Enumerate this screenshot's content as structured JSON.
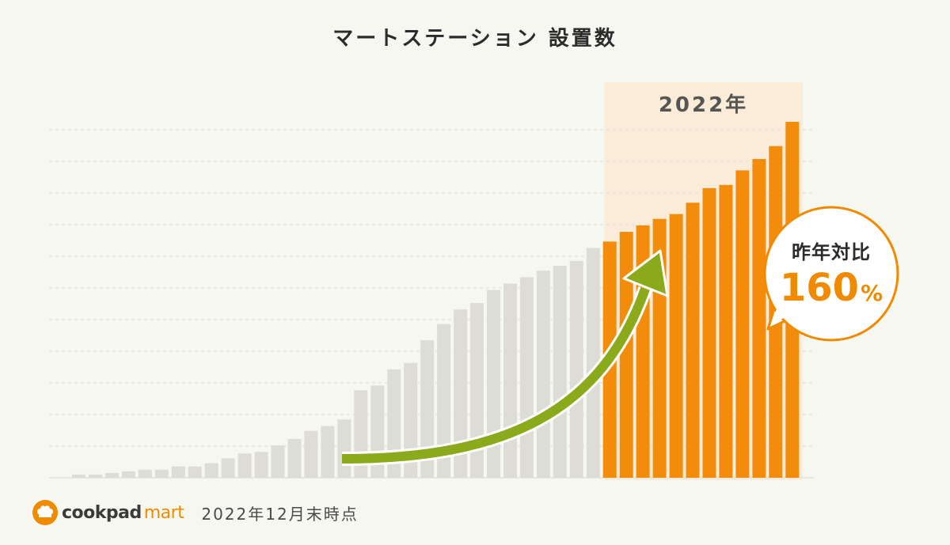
{
  "title": "マートステーション 設置数",
  "highlight_label": "2022年",
  "callout": {
    "label": "昨年対比",
    "value": "160",
    "unit": "%"
  },
  "footer": {
    "brand_cookpad": "cookpad",
    "brand_mart": "mart",
    "note": "2022年12月末時点"
  },
  "colors": {
    "bar_past": "#dddcd7",
    "bar_2022": "#f38c0a",
    "highlight_bg": "#faecd8",
    "arrow": "#8aaa1b",
    "accent": "#f08a00"
  },
  "chart_data": {
    "type": "bar",
    "title": "マートステーション 設置数",
    "xlabel": "",
    "ylabel": "",
    "ylim": [
      0,
      112
    ],
    "grid": true,
    "series": [
      {
        "period": "before 2022",
        "values": [
          1,
          1,
          1.5,
          2,
          2.5,
          2.5,
          3.5,
          3.5,
          4.5,
          6,
          7.5,
          8,
          10,
          12,
          14.5,
          16,
          18,
          27,
          28.5,
          33.5,
          35.5,
          42.5,
          47.5,
          52,
          54,
          58,
          60,
          62,
          64,
          65.5,
          67,
          71
        ]
      },
      {
        "period": "2022",
        "values": [
          73,
          76,
          78,
          80,
          81.5,
          85,
          89.5,
          90.5,
          95,
          98.5,
          102.5,
          110
        ]
      }
    ],
    "highlight": "2022年",
    "annotation": "昨年対比 160%"
  }
}
